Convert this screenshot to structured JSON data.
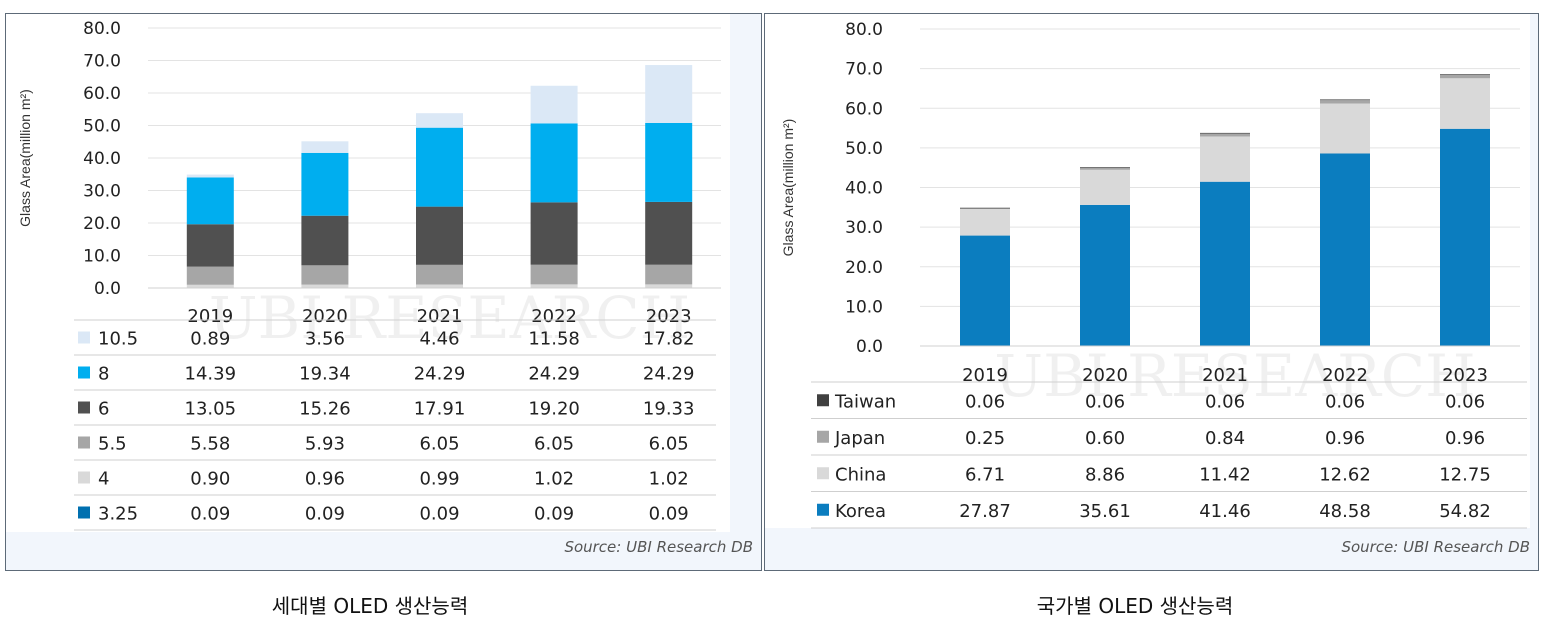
{
  "chart_data": [
    {
      "type": "bar",
      "stacked": true,
      "categories": [
        "2019",
        "2020",
        "2021",
        "2022",
        "2023"
      ],
      "ylabel": "Glass Area(million m²)",
      "ylim": [
        0,
        80
      ],
      "yticks": [
        "0.0",
        "10.0",
        "20.0",
        "30.0",
        "40.0",
        "50.0",
        "60.0",
        "70.0",
        "80.0"
      ],
      "series": [
        {
          "name": "10.5",
          "color": "#dbe8f6",
          "values": [
            0.89,
            3.56,
            4.46,
            11.58,
            17.82
          ],
          "labels": [
            "0.89",
            "3.56",
            "4.46",
            "11.58",
            "17.82"
          ]
        },
        {
          "name": "8",
          "color": "#00aeef",
          "values": [
            14.39,
            19.34,
            24.29,
            24.29,
            24.29
          ],
          "labels": [
            "14.39",
            "19.34",
            "24.29",
            "24.29",
            "24.29"
          ]
        },
        {
          "name": "6",
          "color": "#505050",
          "values": [
            13.05,
            15.26,
            17.91,
            19.2,
            19.33
          ],
          "labels": [
            "13.05",
            "15.26",
            "17.91",
            "19.20",
            "19.33"
          ]
        },
        {
          "name": "5.5",
          "color": "#a6a6a6",
          "values": [
            5.58,
            5.93,
            6.05,
            6.05,
            6.05
          ],
          "labels": [
            "5.58",
            "5.93",
            "6.05",
            "6.05",
            "6.05"
          ]
        },
        {
          "name": "4",
          "color": "#d9d9d9",
          "values": [
            0.9,
            0.96,
            0.99,
            1.02,
            1.02
          ],
          "labels": [
            "0.90",
            "0.96",
            "0.99",
            "1.02",
            "1.02"
          ]
        },
        {
          "name": "3.25",
          "color": "#0070b0",
          "values": [
            0.09,
            0.09,
            0.09,
            0.09,
            0.09
          ],
          "labels": [
            "0.09",
            "0.09",
            "0.09",
            "0.09",
            "0.09"
          ]
        }
      ],
      "source": "Source: UBI Research DB",
      "caption": "세대별 OLED 생산능력",
      "watermark": "UBI RESEARCH"
    },
    {
      "type": "bar",
      "stacked": true,
      "categories": [
        "2019",
        "2020",
        "2021",
        "2022",
        "2023"
      ],
      "ylabel": "Glass Area(million m²)",
      "ylim": [
        0,
        80
      ],
      "yticks": [
        "0.0",
        "10.0",
        "20.0",
        "30.0",
        "40.0",
        "50.0",
        "60.0",
        "70.0",
        "80.0"
      ],
      "series": [
        {
          "name": "Taiwan",
          "color": "#404040",
          "values": [
            0.06,
            0.06,
            0.06,
            0.06,
            0.06
          ],
          "labels": [
            "0.06",
            "0.06",
            "0.06",
            "0.06",
            "0.06"
          ]
        },
        {
          "name": "Japan",
          "color": "#a6a6a6",
          "values": [
            0.25,
            0.6,
            0.84,
            0.96,
            0.96
          ],
          "labels": [
            "0.25",
            "0.60",
            "0.84",
            "0.96",
            "0.96"
          ]
        },
        {
          "name": "China",
          "color": "#d9d9d9",
          "values": [
            6.71,
            8.86,
            11.42,
            12.62,
            12.75
          ],
          "labels": [
            "6.71",
            "8.86",
            "11.42",
            "12.62",
            "12.75"
          ]
        },
        {
          "name": "Korea",
          "color": "#0b7dbf",
          "values": [
            27.87,
            35.61,
            41.46,
            48.58,
            54.82
          ],
          "labels": [
            "27.87",
            "35.61",
            "41.46",
            "48.58",
            "54.82"
          ]
        }
      ],
      "source": "Source: UBI Research DB",
      "caption": "국가별 OLED 생산능력",
      "watermark": "UBI RESEARCH"
    }
  ]
}
